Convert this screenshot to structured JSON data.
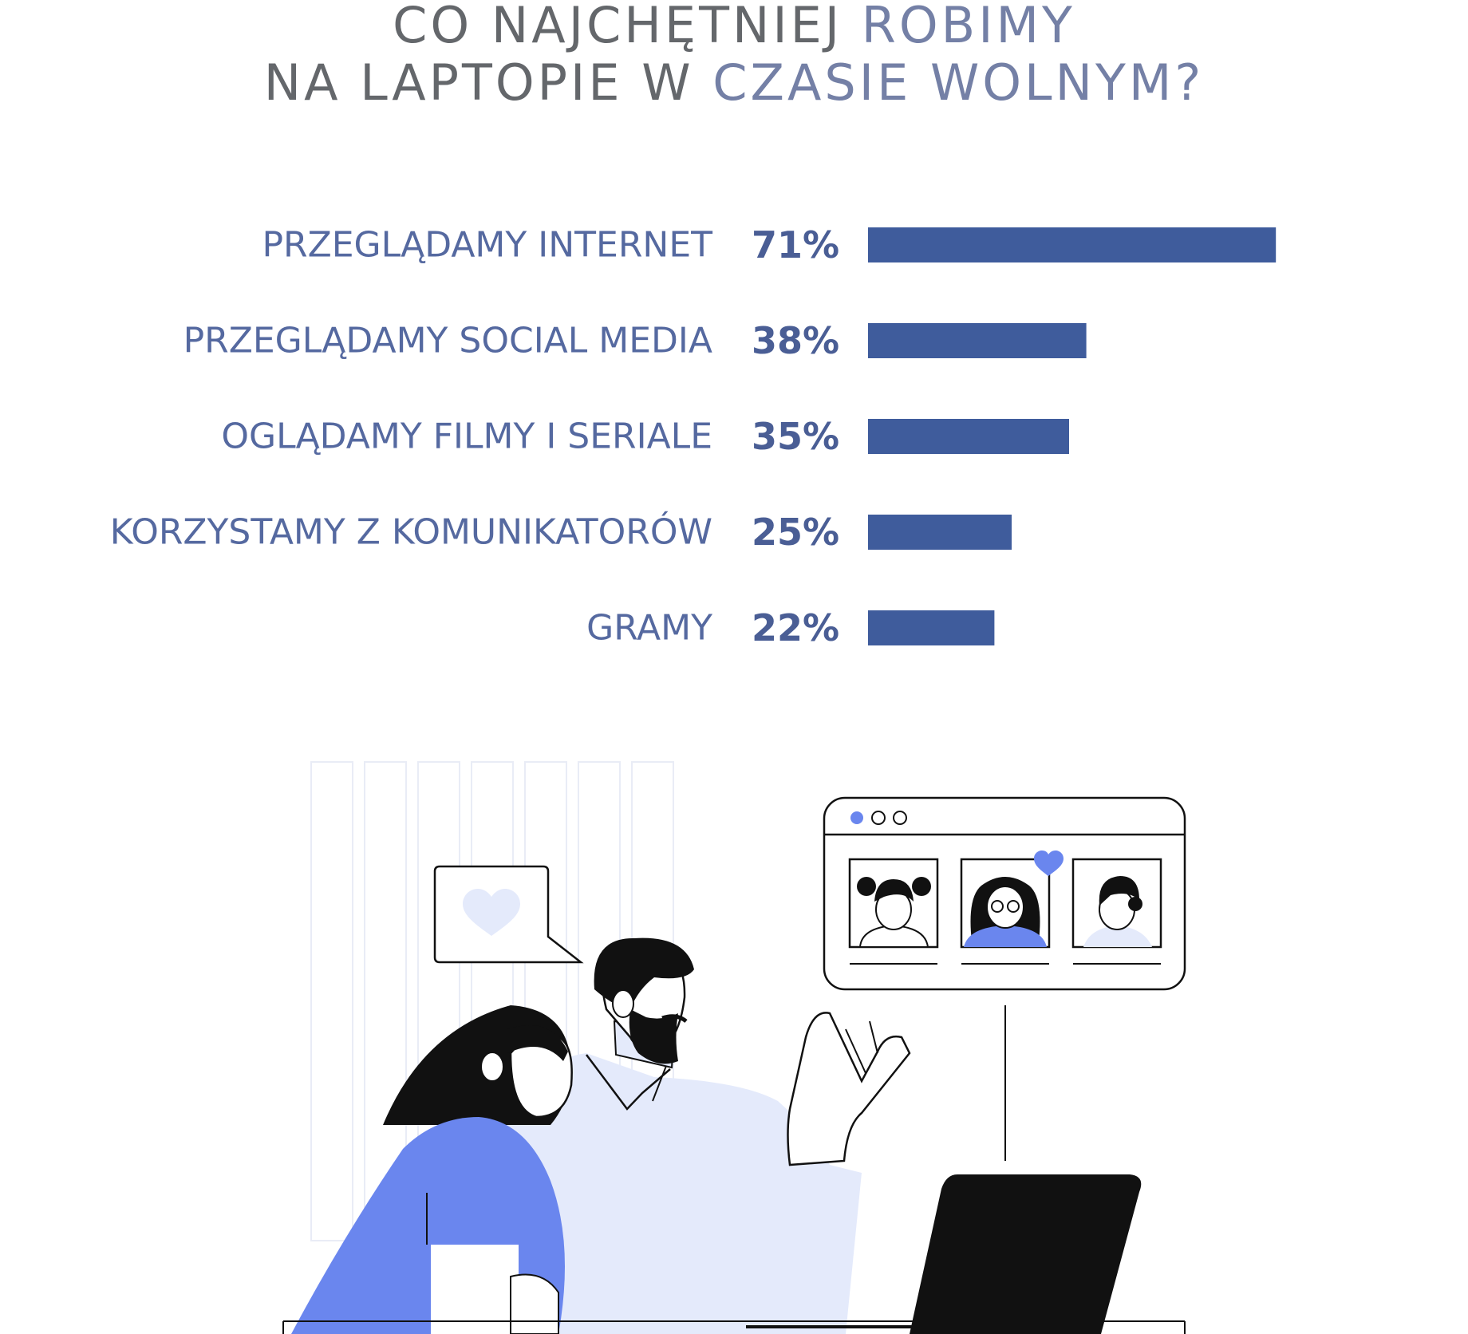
{
  "title": {
    "line1_dark": "CO NAJCHĘTNIEJ",
    "line1_accent": "ROBIMY",
    "line2_dark": "NA LAPTOPIE W",
    "line2_accent": "CZASIE WOLNYM?"
  },
  "colors": {
    "title_dark": "#64676b",
    "title_accent": "#7480a6",
    "category_text": "#5569a0",
    "value_text": "#4a5e95",
    "bar": "#3f5c9c",
    "illustration_blue": "#6a86ee",
    "illustration_light": "#e4eafb"
  },
  "chart_data": {
    "type": "bar",
    "orientation": "horizontal",
    "categories": [
      "PRZEGLĄDAMY INTERNET",
      "PRZEGLĄDAMY SOCIAL MEDIA",
      "OGLĄDAMY FILMY I SERIALE",
      "KORZYSTAMY Z KOMUNIKATORÓW",
      "GRAMY"
    ],
    "values": [
      71,
      38,
      35,
      25,
      22
    ],
    "value_labels": [
      "71%",
      "38%",
      "35%",
      "25%",
      "22%"
    ],
    "unit": "%",
    "xlim": [
      0,
      100
    ],
    "grid": false,
    "legend": "none"
  }
}
